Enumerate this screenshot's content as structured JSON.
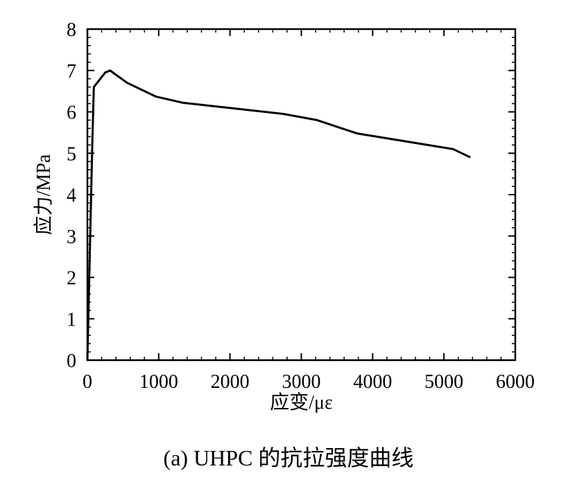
{
  "chart_data": {
    "type": "line",
    "caption": "(a) UHPC 的抗拉强度曲线",
    "xlabel": "应变/με",
    "ylabel": "应力/MPa",
    "xlim": [
      0,
      6000
    ],
    "ylim": [
      0,
      8
    ],
    "xticks": [
      0,
      1000,
      2000,
      3000,
      4000,
      5000,
      6000
    ],
    "yticks": [
      0,
      1,
      2,
      3,
      4,
      5,
      6,
      7,
      8
    ],
    "x_minor_step": 200,
    "y_minor_step": 0.2,
    "grid": false,
    "series": [
      {
        "x": [
          0,
          70,
          90,
          250,
          320,
          380,
          560,
          960,
          1340,
          2750,
          3220,
          3780,
          5130,
          5370
        ],
        "y": [
          0,
          5.3,
          6.6,
          6.95,
          7.0,
          6.92,
          6.7,
          6.37,
          6.22,
          5.95,
          5.8,
          5.48,
          5.1,
          4.9
        ]
      }
    ]
  }
}
